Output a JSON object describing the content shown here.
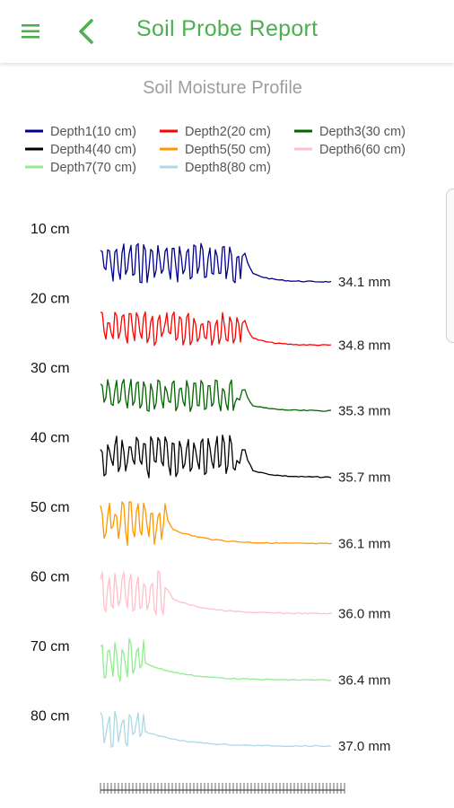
{
  "app_bar": {
    "title": "Soil Probe Report",
    "menu_icon": "hamburger-menu-icon",
    "back_icon": "chevron-left-icon",
    "accent_color": "#4caf50"
  },
  "chart_data": {
    "type": "line",
    "title": "Soil Moisture Profile",
    "legend_placement": "top",
    "y_tick_labels": [
      "10 cm",
      "20 cm",
      "30 cm",
      "40 cm",
      "50 cm",
      "60 cm",
      "70 cm",
      "80 cm"
    ],
    "series": [
      {
        "name": "Depth1(10 cm)",
        "color": "#00008b",
        "end_label": "34.1 mm"
      },
      {
        "name": "Depth2(20 cm)",
        "color": "#ff0000",
        "end_label": "34.8 mm"
      },
      {
        "name": "Depth3(30 cm)",
        "color": "#006400",
        "end_label": "35.3 mm"
      },
      {
        "name": "Depth4(40 cm)",
        "color": "#000000",
        "end_label": "35.7 mm"
      },
      {
        "name": "Depth5(50 cm)",
        "color": "#ff9800",
        "end_label": "36.1 mm"
      },
      {
        "name": "Depth6(60 cm)",
        "color": "#ffc0cb",
        "end_label": "36.0 mm"
      },
      {
        "name": "Depth7(70 cm)",
        "color": "#90ee90",
        "end_label": "36.4 mm"
      },
      {
        "name": "Depth8(80 cm)",
        "color": "#add8e6",
        "end_label": "37.0 mm"
      }
    ]
  }
}
